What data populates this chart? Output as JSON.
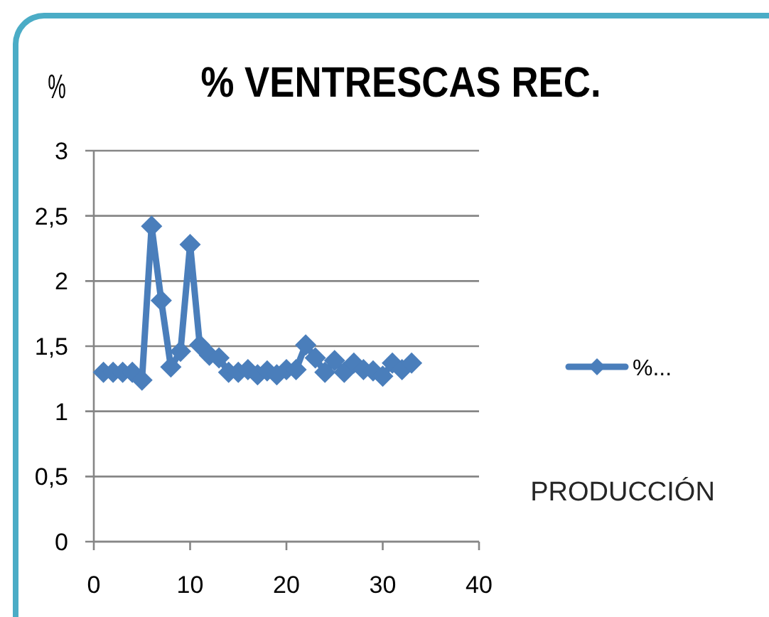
{
  "chart_data": {
    "type": "line",
    "title": "% VENTRESCAS REC.",
    "ylabel": "%",
    "xlabel": "PRODUCCIÓN",
    "x": [
      1,
      2,
      3,
      4,
      5,
      6,
      7,
      8,
      9,
      10,
      11,
      12,
      13,
      14,
      15,
      16,
      17,
      18,
      19,
      20,
      21,
      22,
      23,
      24,
      25,
      26,
      27,
      28,
      29,
      30,
      31,
      32,
      33
    ],
    "series": [
      {
        "name": "%...",
        "color": "#4a7ebb",
        "values": [
          1.3,
          1.3,
          1.3,
          1.3,
          1.24,
          2.42,
          1.85,
          1.34,
          1.46,
          2.28,
          1.51,
          1.43,
          1.41,
          1.3,
          1.3,
          1.32,
          1.28,
          1.31,
          1.28,
          1.32,
          1.32,
          1.51,
          1.41,
          1.3,
          1.39,
          1.3,
          1.37,
          1.32,
          1.31,
          1.27,
          1.37,
          1.32,
          1.37
        ]
      }
    ],
    "xlim": [
      0,
      40
    ],
    "xticks": [
      0,
      10,
      20,
      30,
      40
    ],
    "ylim": [
      0,
      3
    ],
    "yticks": [
      0,
      {
        "value": 0.5,
        "label": "0,5"
      },
      1,
      {
        "value": 1.5,
        "label": "1,5"
      },
      2,
      {
        "value": 2.5,
        "label": "2,5"
      },
      3
    ],
    "grid": "y",
    "legend": "right",
    "marker": "diamond",
    "line_style": "solid"
  }
}
